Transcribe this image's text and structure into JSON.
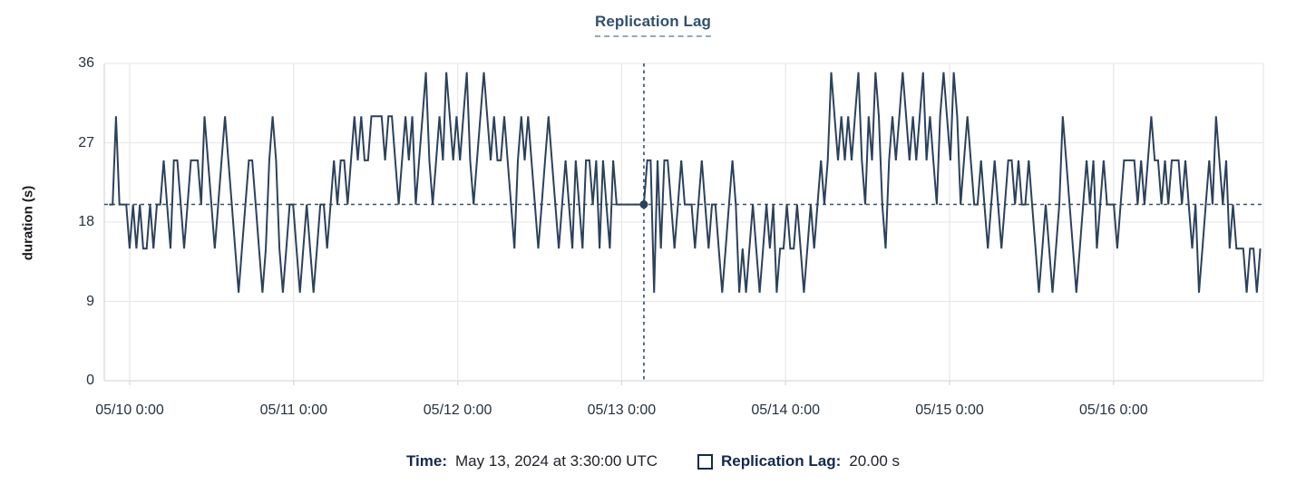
{
  "colors": {
    "series_line": "#2c415c",
    "crosshair_vertical": "#3e6183",
    "crosshair_horizontal": "#35516d",
    "crosshair_dot": "#2c415c",
    "grid": "#e9e9e9",
    "axis": "#d9d9d9",
    "title": "#31506e",
    "tick_text": "#26323e",
    "footer_label": "#15294d"
  },
  "footer": {
    "time_label": "Time:",
    "time_value": "May 13, 2024 at 3:30:00 UTC",
    "series_label": "Replication Lag:",
    "series_value": "20.00 s"
  },
  "chart_data": {
    "type": "line",
    "title": "Replication Lag",
    "xlabel": "",
    "ylabel": "duration (s)",
    "ylim": [
      0,
      36
    ],
    "yticks": [
      36,
      27,
      18,
      9,
      0
    ],
    "ytick_labels": [
      "36",
      "27",
      "18",
      "9",
      "0"
    ],
    "xtick_labels": [
      "05/10 0:00",
      "05/11 0:00",
      "05/12 0:00",
      "05/13 0:00",
      "05/14 0:00",
      "05/15 0:00",
      "05/16 0:00"
    ],
    "grid": true,
    "legend_position": "top-center",
    "x_start": "2024-05-09 21:00 UTC",
    "x_step_minutes": 30,
    "crosshair": {
      "time_label": "May 13, 2024 at 3:30:00 UTC",
      "index": 157,
      "value": 20
    },
    "series": [
      {
        "name": "Replication Lag",
        "unit": "s",
        "values": [
          20,
          20,
          30,
          20,
          20,
          20,
          15,
          20,
          15,
          20,
          15,
          15,
          20,
          15,
          20,
          20,
          25,
          20,
          15,
          25,
          25,
          20,
          15,
          20,
          25,
          25,
          25,
          20,
          30,
          25,
          20,
          15,
          20,
          25,
          30,
          25,
          20,
          15,
          10,
          15,
          20,
          25,
          25,
          20,
          15,
          10,
          15,
          25,
          30,
          25,
          15,
          10,
          15,
          20,
          20,
          15,
          10,
          15,
          20,
          15,
          10,
          15,
          20,
          20,
          15,
          20,
          25,
          20,
          25,
          25,
          20,
          25,
          30,
          25,
          30,
          25,
          25,
          30,
          30,
          30,
          30,
          25,
          30,
          30,
          25,
          20,
          25,
          30,
          25,
          30,
          20,
          25,
          30,
          35,
          25,
          20,
          25,
          30,
          25,
          35,
          30,
          25,
          30,
          25,
          30,
          35,
          25,
          20,
          25,
          30,
          35,
          30,
          25,
          30,
          25,
          25,
          30,
          25,
          20,
          15,
          25,
          30,
          25,
          30,
          25,
          20,
          15,
          20,
          25,
          30,
          25,
          20,
          15,
          20,
          25,
          20,
          15,
          25,
          20,
          15,
          25,
          25,
          20,
          25,
          15,
          25,
          20,
          15,
          25,
          20,
          20,
          20,
          20,
          20,
          20,
          20,
          20,
          20,
          25,
          25,
          10,
          25,
          15,
          25,
          25,
          20,
          15,
          20,
          25,
          20,
          20,
          20,
          15,
          20,
          25,
          20,
          15,
          20,
          20,
          15,
          10,
          15,
          20,
          25,
          20,
          10,
          15,
          10,
          15,
          20,
          15,
          10,
          15,
          20,
          15,
          20,
          10,
          15,
          15,
          20,
          15,
          15,
          20,
          15,
          10,
          15,
          20,
          15,
          20,
          25,
          20,
          25,
          35,
          30,
          25,
          30,
          25,
          30,
          25,
          30,
          35,
          25,
          20,
          30,
          25,
          35,
          30,
          20,
          15,
          25,
          30,
          25,
          30,
          35,
          30,
          25,
          30,
          25,
          30,
          35,
          25,
          30,
          25,
          20,
          30,
          35,
          30,
          25,
          35,
          30,
          20,
          25,
          30,
          25,
          20,
          20,
          25,
          20,
          15,
          20,
          25,
          20,
          15,
          20,
          25,
          25,
          20,
          25,
          20,
          20,
          25,
          20,
          15,
          10,
          15,
          20,
          15,
          10,
          15,
          20,
          30,
          25,
          20,
          15,
          10,
          15,
          20,
          25,
          20,
          25,
          15,
          20,
          25,
          20,
          20,
          20,
          15,
          20,
          25,
          25,
          25,
          25,
          20,
          25,
          20,
          25,
          30,
          25,
          25,
          20,
          25,
          20,
          25,
          25,
          25,
          20,
          25,
          20,
          15,
          20,
          10,
          15,
          20,
          25,
          20,
          30,
          25,
          20,
          25,
          15,
          20,
          15,
          15,
          15,
          10,
          15,
          15,
          10,
          15
        ]
      }
    ]
  }
}
